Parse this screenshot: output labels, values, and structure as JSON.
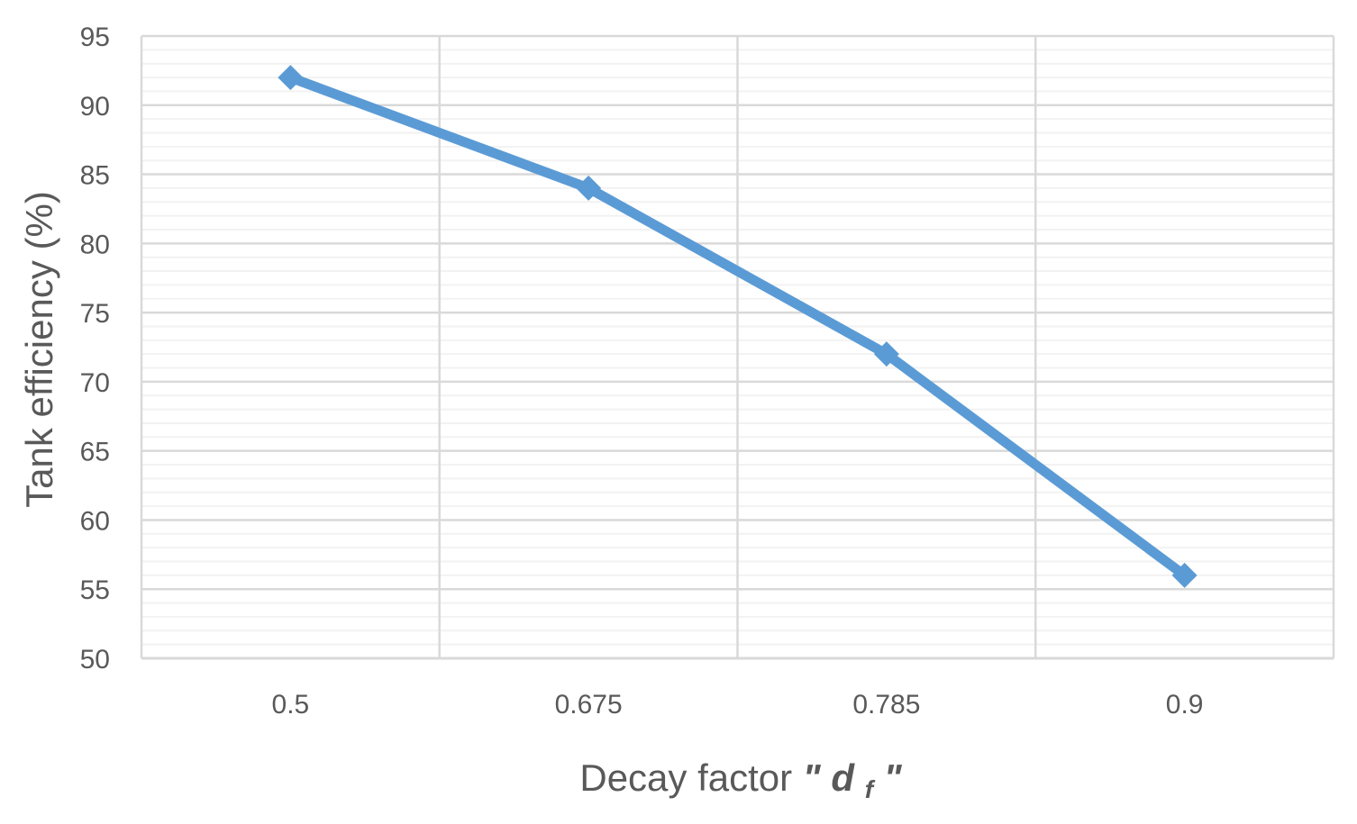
{
  "chart_data": {
    "type": "line",
    "title": "",
    "categories": [
      "0.5",
      "0.675",
      "0.785",
      "0.9"
    ],
    "series": [
      {
        "values": [
          92,
          84,
          72,
          56
        ],
        "color": "#5b9bd5",
        "marker": "diamond"
      }
    ],
    "xlabel": {
      "text": "Decay factor ",
      "var_quote_open": "\"",
      "var_main": "d",
      "var_sub": "f",
      "var_quote_close": "\""
    },
    "ylabel": "Tank efficiency (%)",
    "ylim": [
      50,
      95
    ],
    "yticks": [
      "50",
      "55",
      "60",
      "65",
      "70",
      "75",
      "80",
      "85",
      "90",
      "95"
    ],
    "ytick_values": [
      50,
      55,
      60,
      65,
      70,
      75,
      80,
      85,
      90,
      95
    ],
    "y_minor_step": 1,
    "grid": true,
    "legend": "none",
    "colors": {
      "series": "#5b9bd5",
      "major_grid": "#d9d9d9",
      "minor_grid": "#f2f2f2",
      "text": "#595959"
    }
  }
}
